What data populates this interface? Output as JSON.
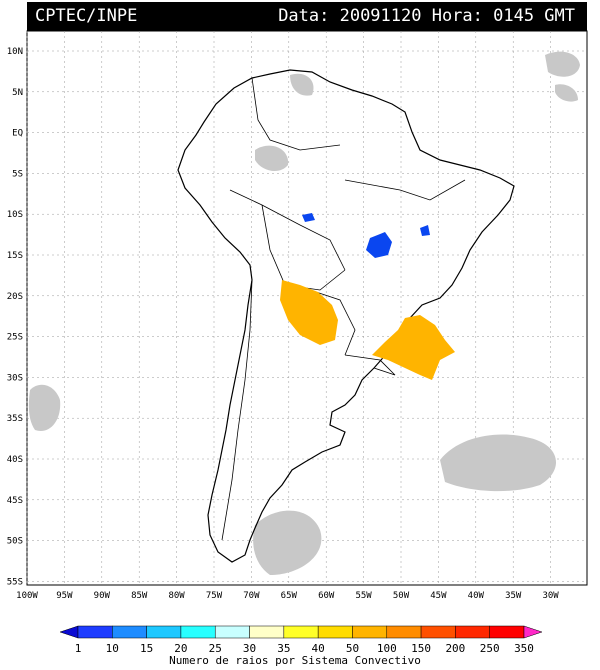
{
  "header": {
    "source": "CPTEC/INPE",
    "datetime": "Data: 20091120 Hora: 0145 GMT"
  },
  "map": {
    "lat_labels": [
      "10N",
      "5N",
      "EQ",
      "5S",
      "10S",
      "15S",
      "20S",
      "25S",
      "30S",
      "35S",
      "40S",
      "45S",
      "50S",
      "55S"
    ],
    "lon_labels": [
      "100W",
      "95W",
      "90W",
      "85W",
      "80W",
      "75W",
      "70W",
      "65W",
      "60W",
      "55W",
      "50W",
      "45W",
      "40W",
      "35W",
      "30W"
    ],
    "colors": {
      "land_outline": "#000000",
      "cloud_gray": "#c8c8c8",
      "strike_blue": "#0a46f0",
      "strike_orange": "#ffb400",
      "grid": "#9a9a9a"
    }
  },
  "legend": {
    "values": [
      "1",
      "10",
      "15",
      "20",
      "25",
      "30",
      "35",
      "40",
      "50",
      "100",
      "150",
      "200",
      "250",
      "350"
    ],
    "colors": [
      "#0a0ad2",
      "#1e3cff",
      "#1e8cff",
      "#1ec8ff",
      "#28ffff",
      "#c8ffff",
      "#ffffc8",
      "#ffff28",
      "#ffdc00",
      "#ffb400",
      "#ff8c00",
      "#ff5000",
      "#ff2800",
      "#ff0000",
      "#ff28c8"
    ],
    "title": "Numero de raios por Sistema Convectivo"
  }
}
